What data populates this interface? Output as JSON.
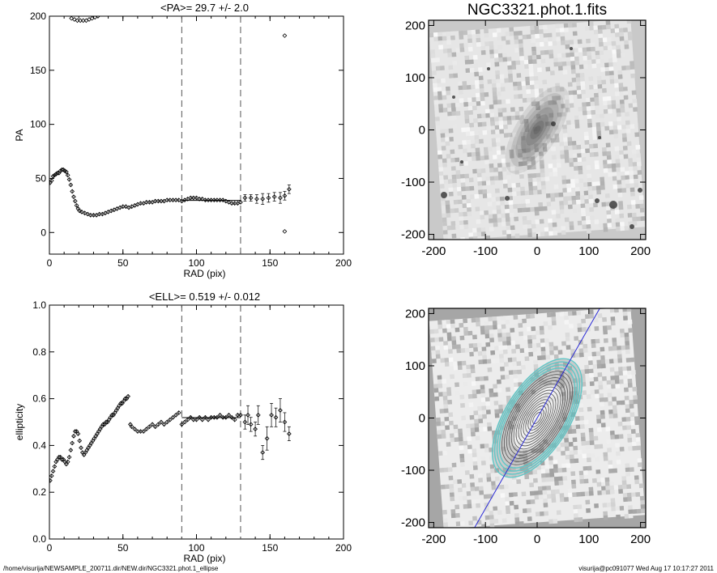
{
  "chart_data": [
    {
      "type": "scatter",
      "title": "<PA>=  29.7 +/-   2.0",
      "xlabel": "RAD (pix)",
      "ylabel": "PA",
      "xlim": [
        0,
        200
      ],
      "ylim": [
        -20,
        200
      ],
      "xticks": [
        "0",
        "50",
        "100",
        "150",
        "200"
      ],
      "yticks": [
        "0",
        "50",
        "100",
        "150",
        "200"
      ],
      "vlines": [
        90,
        130
      ],
      "mean_line": {
        "x": [
          90,
          130
        ],
        "y": 29.7
      },
      "points": [
        [
          0.5,
          46
        ],
        [
          1.5,
          48
        ],
        [
          2.5,
          52
        ],
        [
          3.5,
          53
        ],
        [
          4.5,
          54
        ],
        [
          5.5,
          55
        ],
        [
          6.5,
          55
        ],
        [
          7.5,
          57
        ],
        [
          8.5,
          58
        ],
        [
          9.5,
          58
        ],
        [
          10.5,
          57
        ],
        [
          11.5,
          56
        ],
        [
          12.5,
          53
        ],
        [
          13.5,
          49
        ],
        [
          14.5,
          44
        ],
        [
          15.5,
          38
        ],
        [
          16.5,
          33
        ],
        [
          17.5,
          29
        ],
        [
          18.5,
          25
        ],
        [
          19.5,
          22
        ],
        [
          20.5,
          20
        ],
        [
          22,
          19
        ],
        [
          24,
          18
        ],
        [
          26,
          17
        ],
        [
          28,
          16
        ],
        [
          30,
          16
        ],
        [
          32,
          16
        ],
        [
          34,
          17
        ],
        [
          36,
          17
        ],
        [
          38,
          18
        ],
        [
          40,
          19
        ],
        [
          42,
          20
        ],
        [
          44,
          21
        ],
        [
          46,
          22
        ],
        [
          48,
          23
        ],
        [
          50,
          24
        ],
        [
          52,
          24
        ],
        [
          54,
          23
        ],
        [
          56,
          24
        ],
        [
          58,
          25
        ],
        [
          60,
          26
        ],
        [
          62,
          27
        ],
        [
          64,
          27
        ],
        [
          66,
          28
        ],
        [
          68,
          28
        ],
        [
          70,
          28
        ],
        [
          72,
          29
        ],
        [
          74,
          29
        ],
        [
          76,
          29
        ],
        [
          78,
          29
        ],
        [
          80,
          30
        ],
        [
          82,
          30
        ],
        [
          84,
          30
        ],
        [
          86,
          30
        ],
        [
          88,
          30
        ],
        [
          90,
          29
        ],
        [
          92,
          30
        ],
        [
          94,
          31
        ],
        [
          96,
          32
        ],
        [
          98,
          32
        ],
        [
          100,
          32
        ],
        [
          102,
          31
        ],
        [
          104,
          31
        ],
        [
          106,
          30
        ],
        [
          108,
          30
        ],
        [
          110,
          30
        ],
        [
          112,
          30
        ],
        [
          114,
          30
        ],
        [
          116,
          30
        ],
        [
          118,
          30
        ],
        [
          120,
          29
        ],
        [
          122,
          28
        ],
        [
          124,
          27
        ],
        [
          126,
          27
        ],
        [
          128,
          27
        ],
        [
          130,
          28
        ]
      ],
      "error_points": [
        [
          133,
          32,
          3
        ],
        [
          137,
          32,
          3
        ],
        [
          141,
          31,
          4
        ],
        [
          145,
          31,
          5
        ],
        [
          149,
          32,
          4
        ],
        [
          153,
          33,
          4
        ],
        [
          157,
          32,
          5
        ],
        [
          160,
          34,
          4
        ],
        [
          163,
          40,
          4
        ]
      ],
      "outliers": [
        [
          160,
          182
        ],
        [
          160,
          1
        ]
      ],
      "wrap_points": [
        [
          15,
          198
        ],
        [
          17,
          197
        ],
        [
          19,
          196
        ],
        [
          21,
          196
        ],
        [
          23,
          196
        ],
        [
          25,
          196
        ],
        [
          27,
          197
        ],
        [
          29,
          198
        ],
        [
          31,
          199
        ],
        [
          33,
          200
        ]
      ]
    },
    {
      "type": "scatter",
      "title": "<ELL>= 0.519 +/-  0.012",
      "xlabel": "RAD (pix)",
      "ylabel": "ellipticity",
      "xlim": [
        0,
        200
      ],
      "ylim": [
        0.0,
        1.0
      ],
      "xticks": [
        "0",
        "50",
        "100",
        "150",
        "200"
      ],
      "yticks": [
        "0.0",
        "0.2",
        "0.4",
        "0.6",
        "0.8",
        "1.0"
      ],
      "vlines": [
        90,
        130
      ],
      "mean_line": {
        "x": [
          90,
          130
        ],
        "y": 0.519
      },
      "points": [
        [
          0.5,
          0.25
        ],
        [
          1.5,
          0.27
        ],
        [
          2.5,
          0.29
        ],
        [
          3.5,
          0.31
        ],
        [
          4.5,
          0.33
        ],
        [
          5.5,
          0.34
        ],
        [
          6.5,
          0.35
        ],
        [
          7.5,
          0.35
        ],
        [
          8.5,
          0.34
        ],
        [
          9.5,
          0.34
        ],
        [
          10.5,
          0.33
        ],
        [
          11.5,
          0.32
        ],
        [
          12.5,
          0.33
        ],
        [
          13.5,
          0.35
        ],
        [
          14.5,
          0.38
        ],
        [
          15.5,
          0.41
        ],
        [
          16.5,
          0.44
        ],
        [
          17.5,
          0.46
        ],
        [
          18.5,
          0.46
        ],
        [
          19.5,
          0.45
        ],
        [
          20.5,
          0.42
        ],
        [
          21.5,
          0.39
        ],
        [
          22.5,
          0.37
        ],
        [
          23.5,
          0.36
        ],
        [
          24.5,
          0.37
        ],
        [
          25.5,
          0.38
        ],
        [
          26.5,
          0.39
        ],
        [
          27.5,
          0.4
        ],
        [
          28.5,
          0.41
        ],
        [
          29.5,
          0.42
        ],
        [
          30.5,
          0.43
        ],
        [
          31.5,
          0.44
        ],
        [
          32.5,
          0.45
        ],
        [
          33.5,
          0.46
        ],
        [
          34.5,
          0.47
        ],
        [
          35.5,
          0.48
        ],
        [
          36.5,
          0.49
        ],
        [
          37.5,
          0.49
        ],
        [
          38.5,
          0.5
        ],
        [
          39.5,
          0.5
        ],
        [
          40.5,
          0.51
        ],
        [
          41.5,
          0.52
        ],
        [
          42.5,
          0.53
        ],
        [
          43.5,
          0.53
        ],
        [
          44.5,
          0.54
        ],
        [
          45.5,
          0.55
        ],
        [
          46.5,
          0.56
        ],
        [
          47.5,
          0.57
        ],
        [
          48.5,
          0.58
        ],
        [
          49.5,
          0.58
        ],
        [
          50.5,
          0.59
        ],
        [
          51.5,
          0.6
        ],
        [
          52.5,
          0.6
        ],
        [
          53.5,
          0.61
        ],
        [
          55,
          0.49
        ],
        [
          56,
          0.48
        ],
        [
          58,
          0.47
        ],
        [
          60,
          0.46
        ],
        [
          62,
          0.46
        ],
        [
          64,
          0.46
        ],
        [
          66,
          0.47
        ],
        [
          68,
          0.48
        ],
        [
          70,
          0.49
        ],
        [
          72,
          0.48
        ],
        [
          74,
          0.49
        ],
        [
          76,
          0.5
        ],
        [
          78,
          0.49
        ],
        [
          80,
          0.5
        ],
        [
          82,
          0.51
        ],
        [
          84,
          0.52
        ],
        [
          86,
          0.53
        ],
        [
          88,
          0.54
        ],
        [
          90,
          0.49
        ],
        [
          92,
          0.5
        ],
        [
          94,
          0.51
        ],
        [
          96,
          0.52
        ],
        [
          98,
          0.51
        ],
        [
          100,
          0.51
        ],
        [
          102,
          0.52
        ],
        [
          104,
          0.51
        ],
        [
          106,
          0.52
        ],
        [
          108,
          0.51
        ],
        [
          110,
          0.52
        ],
        [
          112,
          0.52
        ],
        [
          114,
          0.52
        ],
        [
          116,
          0.53
        ],
        [
          118,
          0.52
        ],
        [
          120,
          0.52
        ],
        [
          122,
          0.53
        ],
        [
          124,
          0.52
        ],
        [
          126,
          0.51
        ],
        [
          128,
          0.53
        ],
        [
          130,
          0.53
        ]
      ],
      "error_points": [
        [
          133,
          0.5,
          0.03
        ],
        [
          135,
          0.53,
          0.04
        ],
        [
          137,
          0.49,
          0.03
        ],
        [
          140,
          0.47,
          0.03
        ],
        [
          142,
          0.53,
          0.04
        ],
        [
          145,
          0.37,
          0.03
        ],
        [
          148,
          0.43,
          0.05
        ],
        [
          151,
          0.53,
          0.05
        ],
        [
          154,
          0.52,
          0.04
        ],
        [
          157,
          0.55,
          0.05
        ],
        [
          160,
          0.5,
          0.04
        ],
        [
          163,
          0.45,
          0.03
        ]
      ]
    },
    {
      "type": "heatmap",
      "title": "NGC3321.phot.1.fits",
      "xlim": [
        -210,
        210
      ],
      "ylim": [
        -210,
        210
      ],
      "xticks": [
        "-200",
        "-100",
        "0",
        "100",
        "200"
      ],
      "yticks": [
        "-200",
        "-100",
        "0",
        "100",
        "200"
      ]
    },
    {
      "type": "heatmap",
      "title": "",
      "xlim": [
        -210,
        210
      ],
      "ylim": [
        -210,
        210
      ],
      "xticks": [
        "-200",
        "-100",
        "0",
        "100",
        "200"
      ],
      "yticks": [
        "-200",
        "-100",
        "0",
        "100",
        "200"
      ]
    }
  ],
  "footer": {
    "left": "/home/visurija/NEWSAMPLE_200711.dir/NEW.dir/NGC3321.phot.1_ellipse",
    "right": "visurija@pc091077  Wed Aug 17 10:17:27 2011"
  }
}
